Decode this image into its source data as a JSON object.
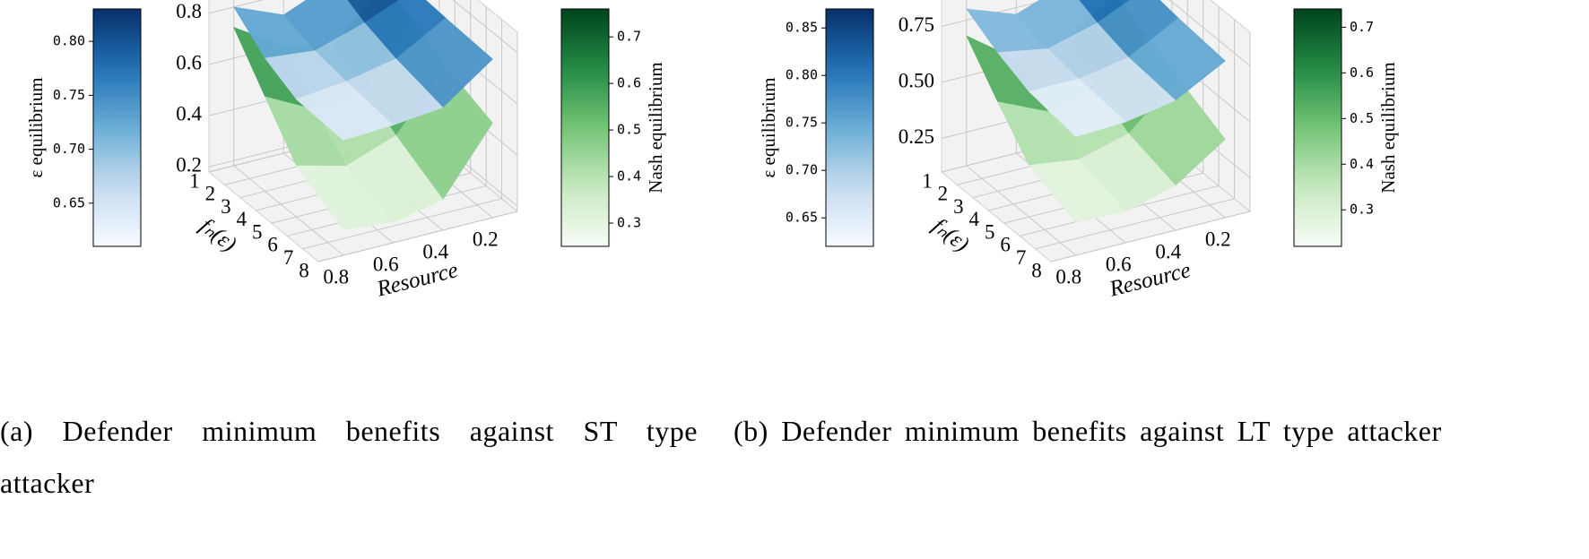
{
  "chart_data": [
    {
      "type": "surface3d",
      "x_label": "Resource",
      "y_label": "fₙ(ε)",
      "x": [
        0.2,
        0.4,
        0.6,
        0.8
      ],
      "y": [
        1,
        3,
        5,
        8
      ],
      "xlim": [
        0.1,
        0.9
      ],
      "ylim": [
        1,
        8
      ],
      "zlim": [
        0.18,
        0.88
      ],
      "xticks": [
        0.2,
        0.4,
        0.6,
        0.8
      ],
      "yticks": [
        1,
        2,
        3,
        4,
        5,
        6,
        7,
        8
      ],
      "zticks": [
        0.2,
        0.4,
        0.6,
        0.8
      ],
      "grid": true,
      "series": [
        {
          "name": "ε equilibrium",
          "colormap": "Blues",
          "clim": [
            0.61,
            0.83
          ],
          "cticks": [
            {
              "value": 0.65,
              "label": "0.65"
            },
            {
              "value": 0.7,
              "label": "0.70"
            },
            {
              "value": 0.75,
              "label": "0.75"
            },
            {
              "value": 0.8,
              "label": "0.80"
            }
          ],
          "values": [
            [
              0.82,
              0.8,
              0.72,
              0.8
            ],
            [
              0.82,
              0.74,
              0.68,
              0.7
            ],
            [
              0.81,
              0.7,
              0.66,
              0.64
            ],
            [
              0.8,
              0.66,
              0.64,
              0.63
            ]
          ]
        },
        {
          "name": "Nash equilibrium",
          "colormap": "Greens",
          "clim": [
            0.25,
            0.76
          ],
          "cticks": [
            0.3,
            0.4,
            0.5,
            0.6,
            0.7
          ],
          "values": [
            [
              0.74,
              0.55,
              0.6,
              0.72
            ],
            [
              0.7,
              0.48,
              0.45,
              0.55
            ],
            [
              0.62,
              0.4,
              0.33,
              0.38
            ],
            [
              0.55,
              0.3,
              0.26,
              0.28
            ]
          ]
        }
      ],
      "caption": "(a) Defender minimum benefits against ST type attacker"
    },
    {
      "type": "surface3d",
      "x_label": "Resource",
      "y_label": "fₙ(ε)",
      "x": [
        0.2,
        0.4,
        0.6,
        0.8
      ],
      "y": [
        1,
        3,
        5,
        8
      ],
      "xlim": [
        0.1,
        0.9
      ],
      "ylim": [
        1,
        8
      ],
      "zlim": [
        0.1,
        0.9
      ],
      "xticks": [
        0.2,
        0.4,
        0.6,
        0.8
      ],
      "yticks": [
        1,
        2,
        3,
        4,
        5,
        6,
        7,
        8
      ],
      "zticks": [
        0.25,
        {
          "value": 0.5,
          "label": "0.50"
        },
        0.75
      ],
      "grid": true,
      "series": [
        {
          "name": "ε equilibrium",
          "colormap": "Blues",
          "clim": [
            0.62,
            0.87
          ],
          "cticks": [
            {
              "value": 0.65,
              "label": "0.65"
            },
            {
              "value": 0.7,
              "label": "0.70"
            },
            {
              "value": 0.75,
              "label": "0.75"
            },
            {
              "value": 0.8,
              "label": "0.80"
            },
            {
              "value": 0.85,
              "label": "0.85"
            }
          ],
          "values": [
            [
              0.85,
              0.8,
              0.72,
              0.8
            ],
            [
              0.84,
              0.74,
              0.68,
              0.72
            ],
            [
              0.82,
              0.7,
              0.66,
              0.66
            ],
            [
              0.8,
              0.68,
              0.64,
              0.63
            ]
          ]
        },
        {
          "name": "Nash equilibrium",
          "colormap": "Greens",
          "clim": [
            0.22,
            0.74
          ],
          "cticks": [
            0.3,
            0.4,
            0.5,
            0.6,
            0.7
          ],
          "values": [
            [
              0.7,
              0.55,
              0.52,
              0.68
            ],
            [
              0.62,
              0.45,
              0.4,
              0.5
            ],
            [
              0.55,
              0.36,
              0.3,
              0.33
            ],
            [
              0.45,
              0.3,
              0.24,
              0.25
            ]
          ]
        }
      ],
      "caption": "(b) Defender minimum benefits against LT type attacker"
    }
  ]
}
